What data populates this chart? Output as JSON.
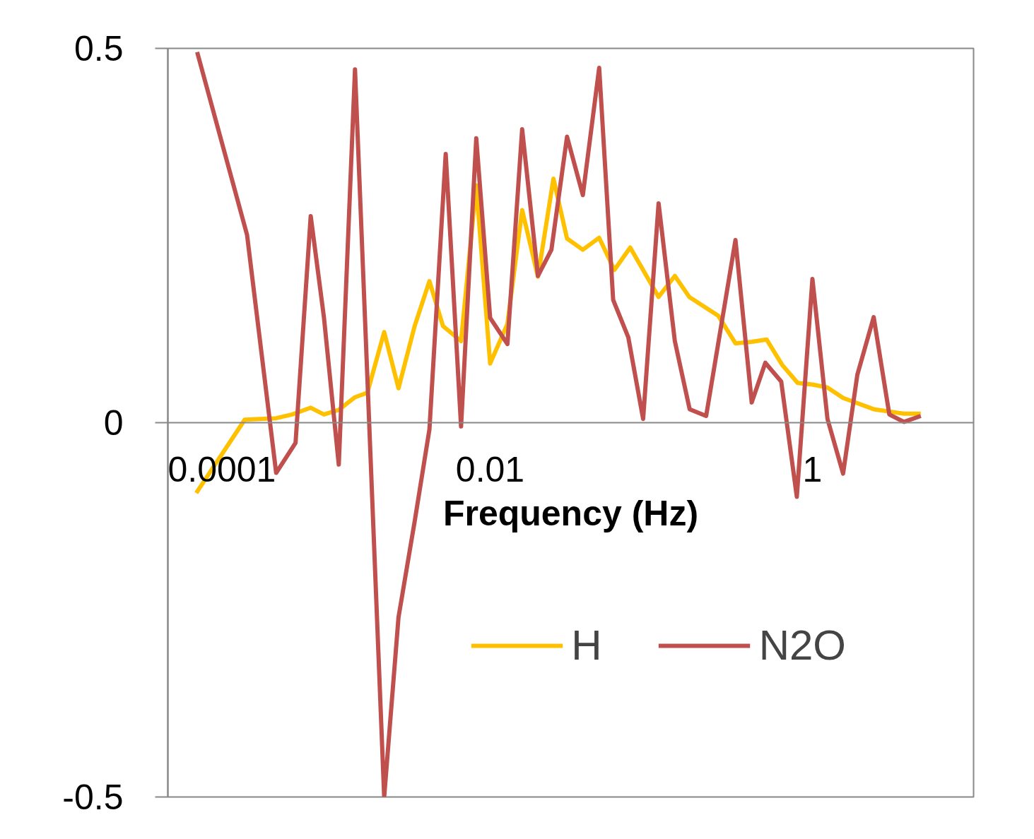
{
  "chart_data": {
    "type": "line",
    "xlabel": "Frequency (Hz)",
    "log": "x",
    "xlim": [
      0.0001,
      10
    ],
    "xticks": [
      0.0001,
      0.01,
      1
    ],
    "ylim": [
      -0.5,
      0.5
    ],
    "yticks": [
      0.5,
      0,
      -0.5
    ],
    "grid": false,
    "legend": "bottom right",
    "marker": "none",
    "line_style": "solid",
    "series": [
      {
        "name": "H",
        "color": "#ffc000",
        "x": [
          0.00015,
          0.0003,
          0.00047,
          0.00059,
          0.00077,
          0.00093,
          0.00115,
          0.00145,
          0.00173,
          0.0022,
          0.0027,
          0.0034,
          0.0042,
          0.0051,
          0.0066,
          0.0082,
          0.01,
          0.0128,
          0.0158,
          0.0198,
          0.0247,
          0.03,
          0.0376,
          0.0475,
          0.059,
          0.074,
          0.111,
          0.14,
          0.172,
          0.26,
          0.333,
          0.42,
          0.52,
          0.65,
          0.81,
          1.0,
          1.24,
          1.55,
          2.4,
          3.7,
          4.7
        ],
        "values": [
          -0.094,
          0.004,
          0.006,
          0.011,
          0.02,
          0.011,
          0.017,
          0.034,
          0.04,
          0.121,
          0.046,
          0.129,
          0.189,
          0.129,
          0.109,
          0.317,
          0.079,
          0.132,
          0.284,
          0.195,
          0.326,
          0.246,
          0.231,
          0.247,
          0.204,
          0.234,
          0.168,
          0.196,
          0.168,
          0.143,
          0.106,
          0.108,
          0.111,
          0.077,
          0.053,
          0.051,
          0.047,
          0.033,
          0.018,
          0.012,
          0.012
        ]
      },
      {
        "name": "N2O",
        "color": "#c0504d",
        "x": [
          0.000152,
          0.00031,
          0.00047,
          0.00062,
          0.00077,
          0.00093,
          0.00115,
          0.00145,
          0.0022,
          0.0027,
          0.0034,
          0.0042,
          0.0053,
          0.0066,
          0.0082,
          0.01,
          0.0128,
          0.0158,
          0.0198,
          0.024,
          0.03,
          0.0376,
          0.0475,
          0.058,
          0.072,
          0.089,
          0.111,
          0.14,
          0.173,
          0.219,
          0.333,
          0.42,
          0.51,
          0.64,
          0.8,
          1.0,
          1.24,
          1.55,
          1.9,
          2.4,
          3.0,
          3.7,
          4.7
        ],
        "values": [
          0.495,
          0.251,
          -0.067,
          -0.027,
          0.276,
          0.141,
          -0.056,
          0.472,
          -0.5,
          -0.26,
          -0.132,
          -0.009,
          0.359,
          -0.005,
          0.38,
          0.14,
          0.105,
          0.392,
          0.196,
          0.231,
          0.382,
          0.304,
          0.474,
          0.164,
          0.114,
          0.005,
          0.293,
          0.109,
          0.018,
          0.009,
          0.244,
          0.027,
          0.08,
          0.055,
          -0.099,
          0.192,
          0.005,
          -0.068,
          0.064,
          0.141,
          0.011,
          0.001,
          0.009
        ]
      }
    ]
  }
}
